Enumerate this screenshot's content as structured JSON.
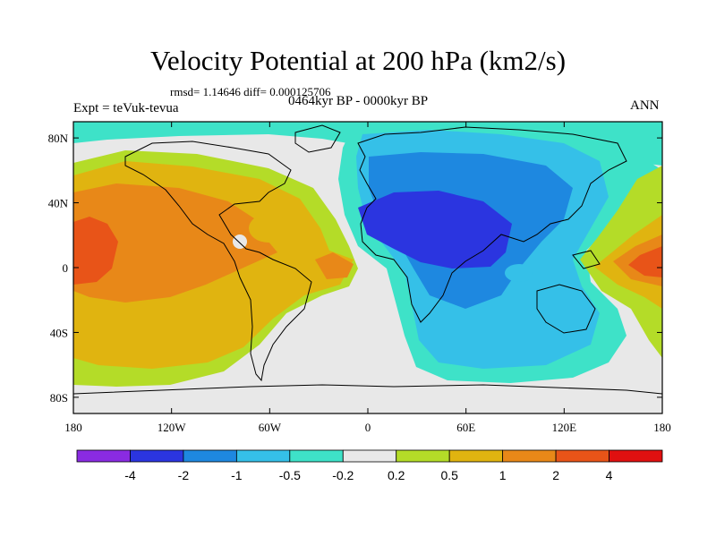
{
  "chart_data": {
    "type": "heatmap",
    "title": "Velocity Potential at 200 hPa (km2/s)",
    "stats_text": "rmsd= 1.14646 diff= 0.000125706",
    "experiment_text": "Expt = teVuk-tevua",
    "period_text": "0464kyr BP - 0000kyr BP",
    "season_text": "ANN",
    "x_ticks": [
      "180",
      "120W",
      "60W",
      "0",
      "60E",
      "120E",
      "180"
    ],
    "y_ticks": [
      "80N",
      "40N",
      "0",
      "40S",
      "80S"
    ],
    "xlim": [
      -180,
      180
    ],
    "ylim": [
      -90,
      90
    ],
    "colorbar": {
      "labels": [
        "-4",
        "-2",
        "-1",
        "-0.5",
        "-0.2",
        "0.2",
        "0.5",
        "1",
        "2",
        "4"
      ],
      "levels": [
        -4,
        -2,
        -1,
        -0.5,
        -0.2,
        0.2,
        0.5,
        1,
        2,
        4
      ],
      "colors": [
        "#8a2be2",
        "#2b35e0",
        "#1e88e0",
        "#35c0e8",
        "#3ee2c8",
        "#e8e8e8",
        "#b4dc28",
        "#e0b410",
        "#e88818",
        "#e85418",
        "#e01010"
      ]
    }
  }
}
